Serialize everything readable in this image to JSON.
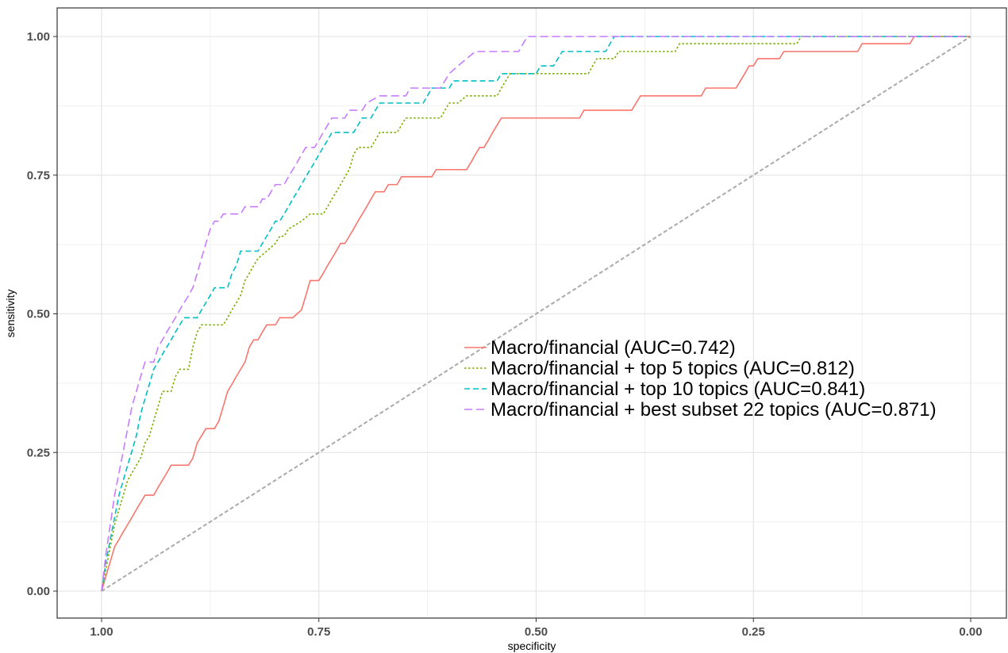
{
  "chart_data": {
    "type": "line",
    "title": "",
    "xlabel": "specificity",
    "ylabel": "sensitivity",
    "x_reversed": true,
    "xlim": [
      1.0,
      0.0
    ],
    "ylim": [
      0.0,
      1.0
    ],
    "x_ticks": [
      "1.00",
      "0.75",
      "0.50",
      "0.25",
      "0.00"
    ],
    "x_tick_values": [
      1.0,
      0.75,
      0.5,
      0.25,
      0.0
    ],
    "y_ticks": [
      "0.00",
      "0.25",
      "0.50",
      "0.75",
      "1.00"
    ],
    "y_tick_values": [
      0.0,
      0.25,
      0.5,
      0.75,
      1.0
    ],
    "grid": true,
    "legend_position": "center-right",
    "series": [
      {
        "name": "Macro/financial (AUC=0.742)",
        "color": "#f8766d",
        "dash": "solid",
        "points": [
          [
            1.0,
            0.0
          ],
          [
            0.995,
            0.027
          ],
          [
            0.99,
            0.053
          ],
          [
            0.985,
            0.08
          ],
          [
            0.98,
            0.093
          ],
          [
            0.975,
            0.107
          ],
          [
            0.97,
            0.12
          ],
          [
            0.965,
            0.133
          ],
          [
            0.96,
            0.147
          ],
          [
            0.955,
            0.16
          ],
          [
            0.95,
            0.173
          ],
          [
            0.94,
            0.173
          ],
          [
            0.935,
            0.187
          ],
          [
            0.93,
            0.2
          ],
          [
            0.925,
            0.213
          ],
          [
            0.92,
            0.227
          ],
          [
            0.91,
            0.227
          ],
          [
            0.9,
            0.227
          ],
          [
            0.895,
            0.24
          ],
          [
            0.89,
            0.267
          ],
          [
            0.885,
            0.28
          ],
          [
            0.88,
            0.293
          ],
          [
            0.87,
            0.293
          ],
          [
            0.865,
            0.307
          ],
          [
            0.86,
            0.333
          ],
          [
            0.855,
            0.36
          ],
          [
            0.85,
            0.373
          ],
          [
            0.845,
            0.387
          ],
          [
            0.84,
            0.4
          ],
          [
            0.835,
            0.413
          ],
          [
            0.83,
            0.44
          ],
          [
            0.825,
            0.453
          ],
          [
            0.82,
            0.453
          ],
          [
            0.815,
            0.467
          ],
          [
            0.81,
            0.48
          ],
          [
            0.8,
            0.48
          ],
          [
            0.795,
            0.493
          ],
          [
            0.78,
            0.493
          ],
          [
            0.77,
            0.507
          ],
          [
            0.765,
            0.533
          ],
          [
            0.76,
            0.56
          ],
          [
            0.75,
            0.56
          ],
          [
            0.745,
            0.573
          ],
          [
            0.74,
            0.587
          ],
          [
            0.735,
            0.6
          ],
          [
            0.73,
            0.613
          ],
          [
            0.725,
            0.627
          ],
          [
            0.72,
            0.627
          ],
          [
            0.715,
            0.64
          ],
          [
            0.71,
            0.653
          ],
          [
            0.705,
            0.667
          ],
          [
            0.7,
            0.68
          ],
          [
            0.695,
            0.693
          ],
          [
            0.69,
            0.707
          ],
          [
            0.685,
            0.72
          ],
          [
            0.675,
            0.72
          ],
          [
            0.67,
            0.733
          ],
          [
            0.66,
            0.733
          ],
          [
            0.655,
            0.747
          ],
          [
            0.62,
            0.747
          ],
          [
            0.615,
            0.76
          ],
          [
            0.58,
            0.76
          ],
          [
            0.575,
            0.773
          ],
          [
            0.57,
            0.787
          ],
          [
            0.565,
            0.8
          ],
          [
            0.56,
            0.8
          ],
          [
            0.555,
            0.813
          ],
          [
            0.55,
            0.827
          ],
          [
            0.545,
            0.84
          ],
          [
            0.54,
            0.853
          ],
          [
            0.51,
            0.853
          ],
          [
            0.48,
            0.853
          ],
          [
            0.45,
            0.853
          ],
          [
            0.445,
            0.867
          ],
          [
            0.39,
            0.867
          ],
          [
            0.385,
            0.88
          ],
          [
            0.38,
            0.893
          ],
          [
            0.31,
            0.893
          ],
          [
            0.305,
            0.907
          ],
          [
            0.27,
            0.907
          ],
          [
            0.265,
            0.92
          ],
          [
            0.26,
            0.933
          ],
          [
            0.255,
            0.947
          ],
          [
            0.25,
            0.947
          ],
          [
            0.245,
            0.96
          ],
          [
            0.23,
            0.96
          ],
          [
            0.22,
            0.96
          ],
          [
            0.215,
            0.973
          ],
          [
            0.13,
            0.973
          ],
          [
            0.125,
            0.987
          ],
          [
            0.07,
            0.987
          ],
          [
            0.065,
            1.0
          ],
          [
            0.0,
            1.0
          ]
        ]
      },
      {
        "name": "Macro/financial + top 5 topics (AUC=0.812)",
        "color": "#7cae00",
        "dash": "dotted",
        "points": [
          [
            1.0,
            0.0
          ],
          [
            0.995,
            0.04
          ],
          [
            0.99,
            0.08
          ],
          [
            0.985,
            0.12
          ],
          [
            0.98,
            0.147
          ],
          [
            0.975,
            0.173
          ],
          [
            0.97,
            0.2
          ],
          [
            0.965,
            0.213
          ],
          [
            0.96,
            0.227
          ],
          [
            0.955,
            0.24
          ],
          [
            0.95,
            0.267
          ],
          [
            0.945,
            0.28
          ],
          [
            0.94,
            0.307
          ],
          [
            0.935,
            0.333
          ],
          [
            0.93,
            0.36
          ],
          [
            0.92,
            0.36
          ],
          [
            0.915,
            0.387
          ],
          [
            0.91,
            0.4
          ],
          [
            0.9,
            0.4
          ],
          [
            0.895,
            0.44
          ],
          [
            0.89,
            0.467
          ],
          [
            0.885,
            0.48
          ],
          [
            0.86,
            0.48
          ],
          [
            0.855,
            0.493
          ],
          [
            0.85,
            0.507
          ],
          [
            0.845,
            0.52
          ],
          [
            0.84,
            0.533
          ],
          [
            0.835,
            0.56
          ],
          [
            0.83,
            0.573
          ],
          [
            0.825,
            0.587
          ],
          [
            0.82,
            0.6
          ],
          [
            0.81,
            0.613
          ],
          [
            0.8,
            0.627
          ],
          [
            0.795,
            0.64
          ],
          [
            0.79,
            0.64
          ],
          [
            0.785,
            0.653
          ],
          [
            0.77,
            0.667
          ],
          [
            0.76,
            0.68
          ],
          [
            0.745,
            0.68
          ],
          [
            0.74,
            0.693
          ],
          [
            0.735,
            0.707
          ],
          [
            0.73,
            0.72
          ],
          [
            0.725,
            0.733
          ],
          [
            0.72,
            0.747
          ],
          [
            0.715,
            0.76
          ],
          [
            0.71,
            0.787
          ],
          [
            0.705,
            0.8
          ],
          [
            0.69,
            0.8
          ],
          [
            0.685,
            0.813
          ],
          [
            0.68,
            0.827
          ],
          [
            0.66,
            0.827
          ],
          [
            0.655,
            0.84
          ],
          [
            0.65,
            0.853
          ],
          [
            0.61,
            0.853
          ],
          [
            0.605,
            0.867
          ],
          [
            0.6,
            0.88
          ],
          [
            0.59,
            0.88
          ],
          [
            0.58,
            0.893
          ],
          [
            0.545,
            0.893
          ],
          [
            0.54,
            0.907
          ],
          [
            0.535,
            0.92
          ],
          [
            0.53,
            0.933
          ],
          [
            0.44,
            0.933
          ],
          [
            0.435,
            0.947
          ],
          [
            0.43,
            0.96
          ],
          [
            0.41,
            0.96
          ],
          [
            0.405,
            0.973
          ],
          [
            0.34,
            0.973
          ],
          [
            0.335,
            0.987
          ],
          [
            0.2,
            0.987
          ],
          [
            0.195,
            1.0
          ],
          [
            0.0,
            1.0
          ]
        ]
      },
      {
        "name": "Macro/financial + top 10 topics (AUC=0.841)",
        "color": "#00bfc4",
        "dash": "dashed",
        "points": [
          [
            1.0,
            0.0
          ],
          [
            0.995,
            0.053
          ],
          [
            0.99,
            0.093
          ],
          [
            0.985,
            0.133
          ],
          [
            0.98,
            0.173
          ],
          [
            0.975,
            0.2
          ],
          [
            0.97,
            0.227
          ],
          [
            0.965,
            0.253
          ],
          [
            0.96,
            0.28
          ],
          [
            0.955,
            0.32
          ],
          [
            0.95,
            0.347
          ],
          [
            0.945,
            0.373
          ],
          [
            0.94,
            0.4
          ],
          [
            0.935,
            0.413
          ],
          [
            0.93,
            0.427
          ],
          [
            0.925,
            0.44
          ],
          [
            0.92,
            0.453
          ],
          [
            0.915,
            0.467
          ],
          [
            0.91,
            0.48
          ],
          [
            0.905,
            0.493
          ],
          [
            0.89,
            0.493
          ],
          [
            0.885,
            0.507
          ],
          [
            0.88,
            0.52
          ],
          [
            0.875,
            0.533
          ],
          [
            0.87,
            0.547
          ],
          [
            0.855,
            0.547
          ],
          [
            0.85,
            0.573
          ],
          [
            0.845,
            0.587
          ],
          [
            0.84,
            0.613
          ],
          [
            0.82,
            0.613
          ],
          [
            0.815,
            0.627
          ],
          [
            0.81,
            0.64
          ],
          [
            0.805,
            0.653
          ],
          [
            0.8,
            0.667
          ],
          [
            0.795,
            0.667
          ],
          [
            0.79,
            0.68
          ],
          [
            0.785,
            0.693
          ],
          [
            0.78,
            0.707
          ],
          [
            0.775,
            0.72
          ],
          [
            0.77,
            0.733
          ],
          [
            0.765,
            0.747
          ],
          [
            0.76,
            0.76
          ],
          [
            0.755,
            0.773
          ],
          [
            0.75,
            0.787
          ],
          [
            0.745,
            0.8
          ],
          [
            0.74,
            0.813
          ],
          [
            0.735,
            0.827
          ],
          [
            0.72,
            0.827
          ],
          [
            0.71,
            0.827
          ],
          [
            0.705,
            0.84
          ],
          [
            0.7,
            0.853
          ],
          [
            0.69,
            0.853
          ],
          [
            0.685,
            0.867
          ],
          [
            0.68,
            0.88
          ],
          [
            0.63,
            0.88
          ],
          [
            0.625,
            0.893
          ],
          [
            0.62,
            0.907
          ],
          [
            0.6,
            0.907
          ],
          [
            0.595,
            0.92
          ],
          [
            0.545,
            0.92
          ],
          [
            0.54,
            0.933
          ],
          [
            0.5,
            0.933
          ],
          [
            0.495,
            0.947
          ],
          [
            0.48,
            0.947
          ],
          [
            0.475,
            0.96
          ],
          [
            0.47,
            0.973
          ],
          [
            0.42,
            0.973
          ],
          [
            0.415,
            0.987
          ],
          [
            0.41,
            1.0
          ],
          [
            0.0,
            1.0
          ]
        ]
      },
      {
        "name": "Macro/financial + best subset 22 topics (AUC=0.871)",
        "color": "#c77cff",
        "dash": "longdash",
        "points": [
          [
            1.0,
            0.0
          ],
          [
            0.995,
            0.067
          ],
          [
            0.99,
            0.12
          ],
          [
            0.985,
            0.173
          ],
          [
            0.98,
            0.213
          ],
          [
            0.975,
            0.253
          ],
          [
            0.97,
            0.293
          ],
          [
            0.965,
            0.333
          ],
          [
            0.96,
            0.36
          ],
          [
            0.955,
            0.387
          ],
          [
            0.95,
            0.413
          ],
          [
            0.94,
            0.413
          ],
          [
            0.935,
            0.44
          ],
          [
            0.93,
            0.453
          ],
          [
            0.925,
            0.467
          ],
          [
            0.92,
            0.48
          ],
          [
            0.915,
            0.493
          ],
          [
            0.91,
            0.507
          ],
          [
            0.905,
            0.52
          ],
          [
            0.9,
            0.533
          ],
          [
            0.895,
            0.547
          ],
          [
            0.89,
            0.573
          ],
          [
            0.885,
            0.6
          ],
          [
            0.88,
            0.627
          ],
          [
            0.875,
            0.653
          ],
          [
            0.87,
            0.667
          ],
          [
            0.865,
            0.667
          ],
          [
            0.86,
            0.68
          ],
          [
            0.84,
            0.68
          ],
          [
            0.835,
            0.693
          ],
          [
            0.82,
            0.693
          ],
          [
            0.815,
            0.707
          ],
          [
            0.81,
            0.707
          ],
          [
            0.805,
            0.72
          ],
          [
            0.8,
            0.733
          ],
          [
            0.79,
            0.733
          ],
          [
            0.785,
            0.747
          ],
          [
            0.78,
            0.76
          ],
          [
            0.775,
            0.773
          ],
          [
            0.77,
            0.787
          ],
          [
            0.765,
            0.8
          ],
          [
            0.755,
            0.8
          ],
          [
            0.75,
            0.813
          ],
          [
            0.745,
            0.827
          ],
          [
            0.74,
            0.84
          ],
          [
            0.735,
            0.853
          ],
          [
            0.72,
            0.853
          ],
          [
            0.715,
            0.867
          ],
          [
            0.7,
            0.867
          ],
          [
            0.695,
            0.88
          ],
          [
            0.68,
            0.893
          ],
          [
            0.65,
            0.893
          ],
          [
            0.645,
            0.907
          ],
          [
            0.61,
            0.907
          ],
          [
            0.605,
            0.92
          ],
          [
            0.6,
            0.933
          ],
          [
            0.59,
            0.947
          ],
          [
            0.58,
            0.96
          ],
          [
            0.57,
            0.973
          ],
          [
            0.52,
            0.973
          ],
          [
            0.515,
            0.987
          ],
          [
            0.51,
            1.0
          ],
          [
            0.0,
            1.0
          ]
        ]
      },
      {
        "name": "",
        "color": "#aaaaaa",
        "dash": "diagonal",
        "points": [
          [
            1.0,
            0.0
          ],
          [
            0.0,
            1.0
          ]
        ]
      }
    ]
  }
}
